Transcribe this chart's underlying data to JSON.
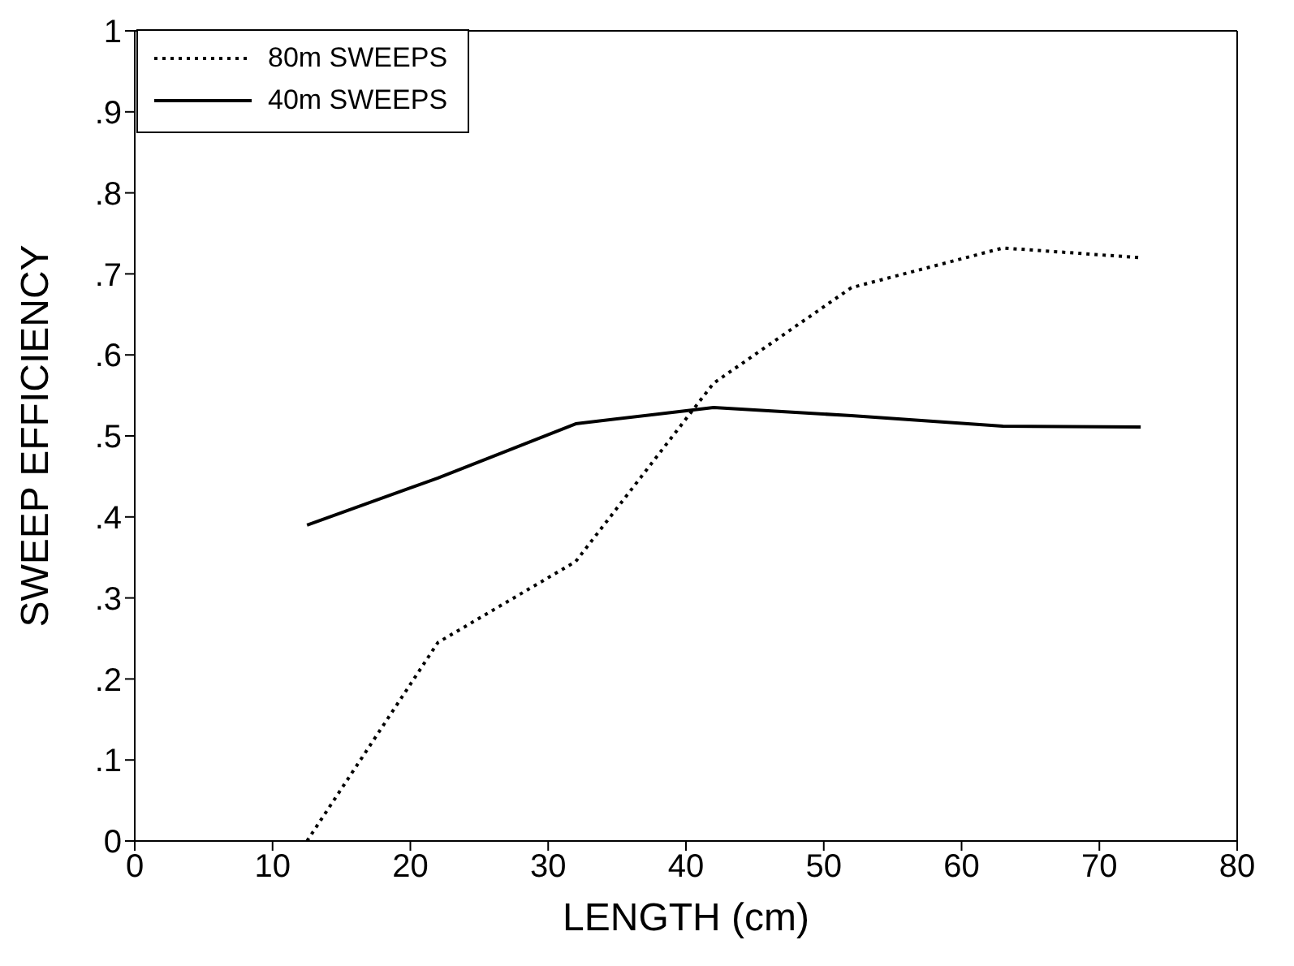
{
  "chart_data": {
    "type": "line",
    "xlabel": "LENGTH (cm)",
    "ylabel": "SWEEP EFFICIENCY",
    "xlim": [
      0,
      80
    ],
    "xticks": [
      0,
      10,
      20,
      30,
      40,
      50,
      60,
      70,
      80
    ],
    "ylim": [
      0,
      1
    ],
    "yticks": [
      0,
      {
        "value": 0.1,
        "label": ".1"
      },
      {
        "value": 0.2,
        "label": ".2"
      },
      {
        "value": 0.3,
        "label": ".3"
      },
      {
        "value": 0.4,
        "label": ".4"
      },
      {
        "value": 0.5,
        "label": ".5"
      },
      {
        "value": 0.6,
        "label": ".6"
      },
      {
        "value": 0.7,
        "label": ".7"
      },
      {
        "value": 0.8,
        "label": ".8"
      },
      {
        "value": 0.9,
        "label": ".9"
      },
      1
    ],
    "grid": false,
    "legend": "top left",
    "marker": "none",
    "series": [
      {
        "name": "80m SWEEPS",
        "color": "#000000",
        "line_style": "dotted",
        "x": [
          12.5,
          22,
          32,
          42,
          52,
          63,
          73
        ],
        "values": [
          0,
          0.245,
          0.345,
          0.565,
          0.683,
          0.732,
          0.72
        ]
      },
      {
        "name": "40m SWEEPS",
        "color": "#000000",
        "line_style": "solid",
        "x": [
          12.5,
          22,
          32,
          42,
          52,
          63,
          73
        ],
        "values": [
          0.39,
          0.448,
          0.515,
          0.535,
          0.525,
          0.512,
          0.511
        ]
      }
    ]
  }
}
